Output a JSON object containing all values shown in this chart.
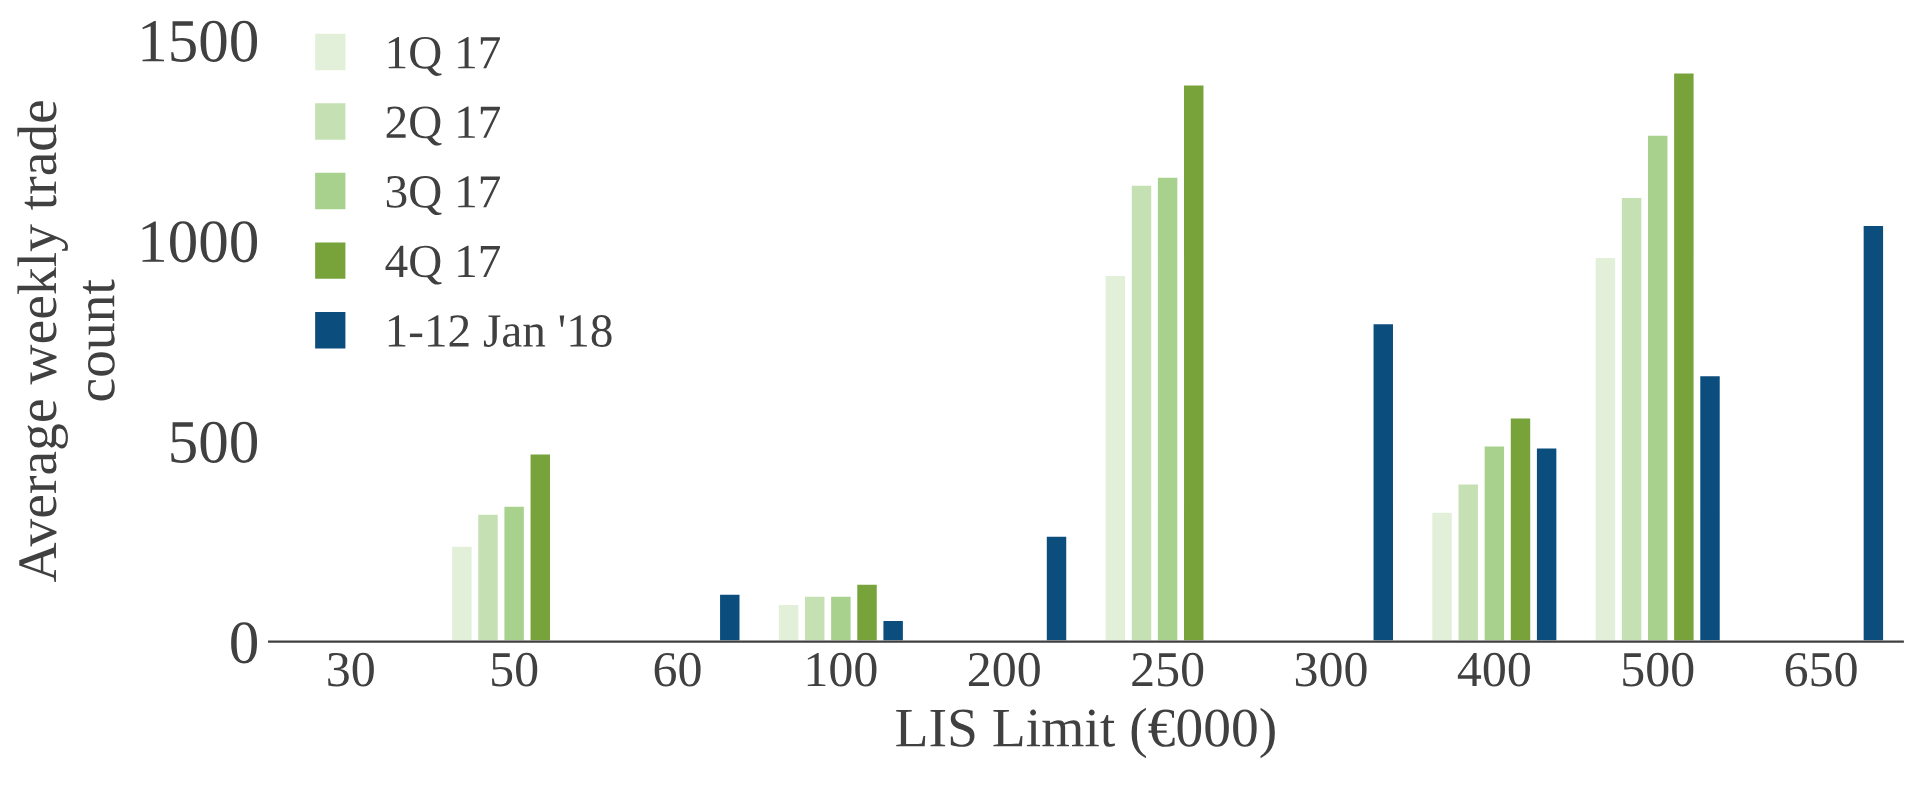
{
  "chart_data": {
    "type": "bar",
    "xlabel": "LIS Limit (€000)",
    "ylabel": "Average weekly trade\ncount",
    "categories": [
      "30",
      "50",
      "60",
      "100",
      "200",
      "250",
      "300",
      "400",
      "500",
      "650"
    ],
    "series": [
      {
        "name": "1Q 17",
        "color": "#e2efd9",
        "values": [
          null,
          240,
          null,
          95,
          null,
          915,
          null,
          325,
          960,
          null
        ]
      },
      {
        "name": "2Q 17",
        "color": "#c5e0b3",
        "values": [
          null,
          320,
          null,
          115,
          null,
          1140,
          null,
          395,
          1110,
          null
        ]
      },
      {
        "name": "3Q 17",
        "color": "#a9d18e",
        "values": [
          null,
          340,
          null,
          115,
          null,
          1160,
          null,
          490,
          1265,
          null
        ]
      },
      {
        "name": "4Q 17",
        "color": "#77a33a",
        "values": [
          null,
          470,
          null,
          145,
          null,
          1390,
          null,
          560,
          1420,
          null
        ]
      },
      {
        "name": "1-12 Jan '18",
        "color": "#0b4d7d",
        "values": [
          5,
          null,
          120,
          55,
          265,
          null,
          795,
          485,
          665,
          1040
        ]
      }
    ],
    "ylim": [
      0,
      1500
    ],
    "yticks": [
      0,
      500,
      1000,
      1500
    ],
    "grid": false,
    "legend": "top left"
  }
}
